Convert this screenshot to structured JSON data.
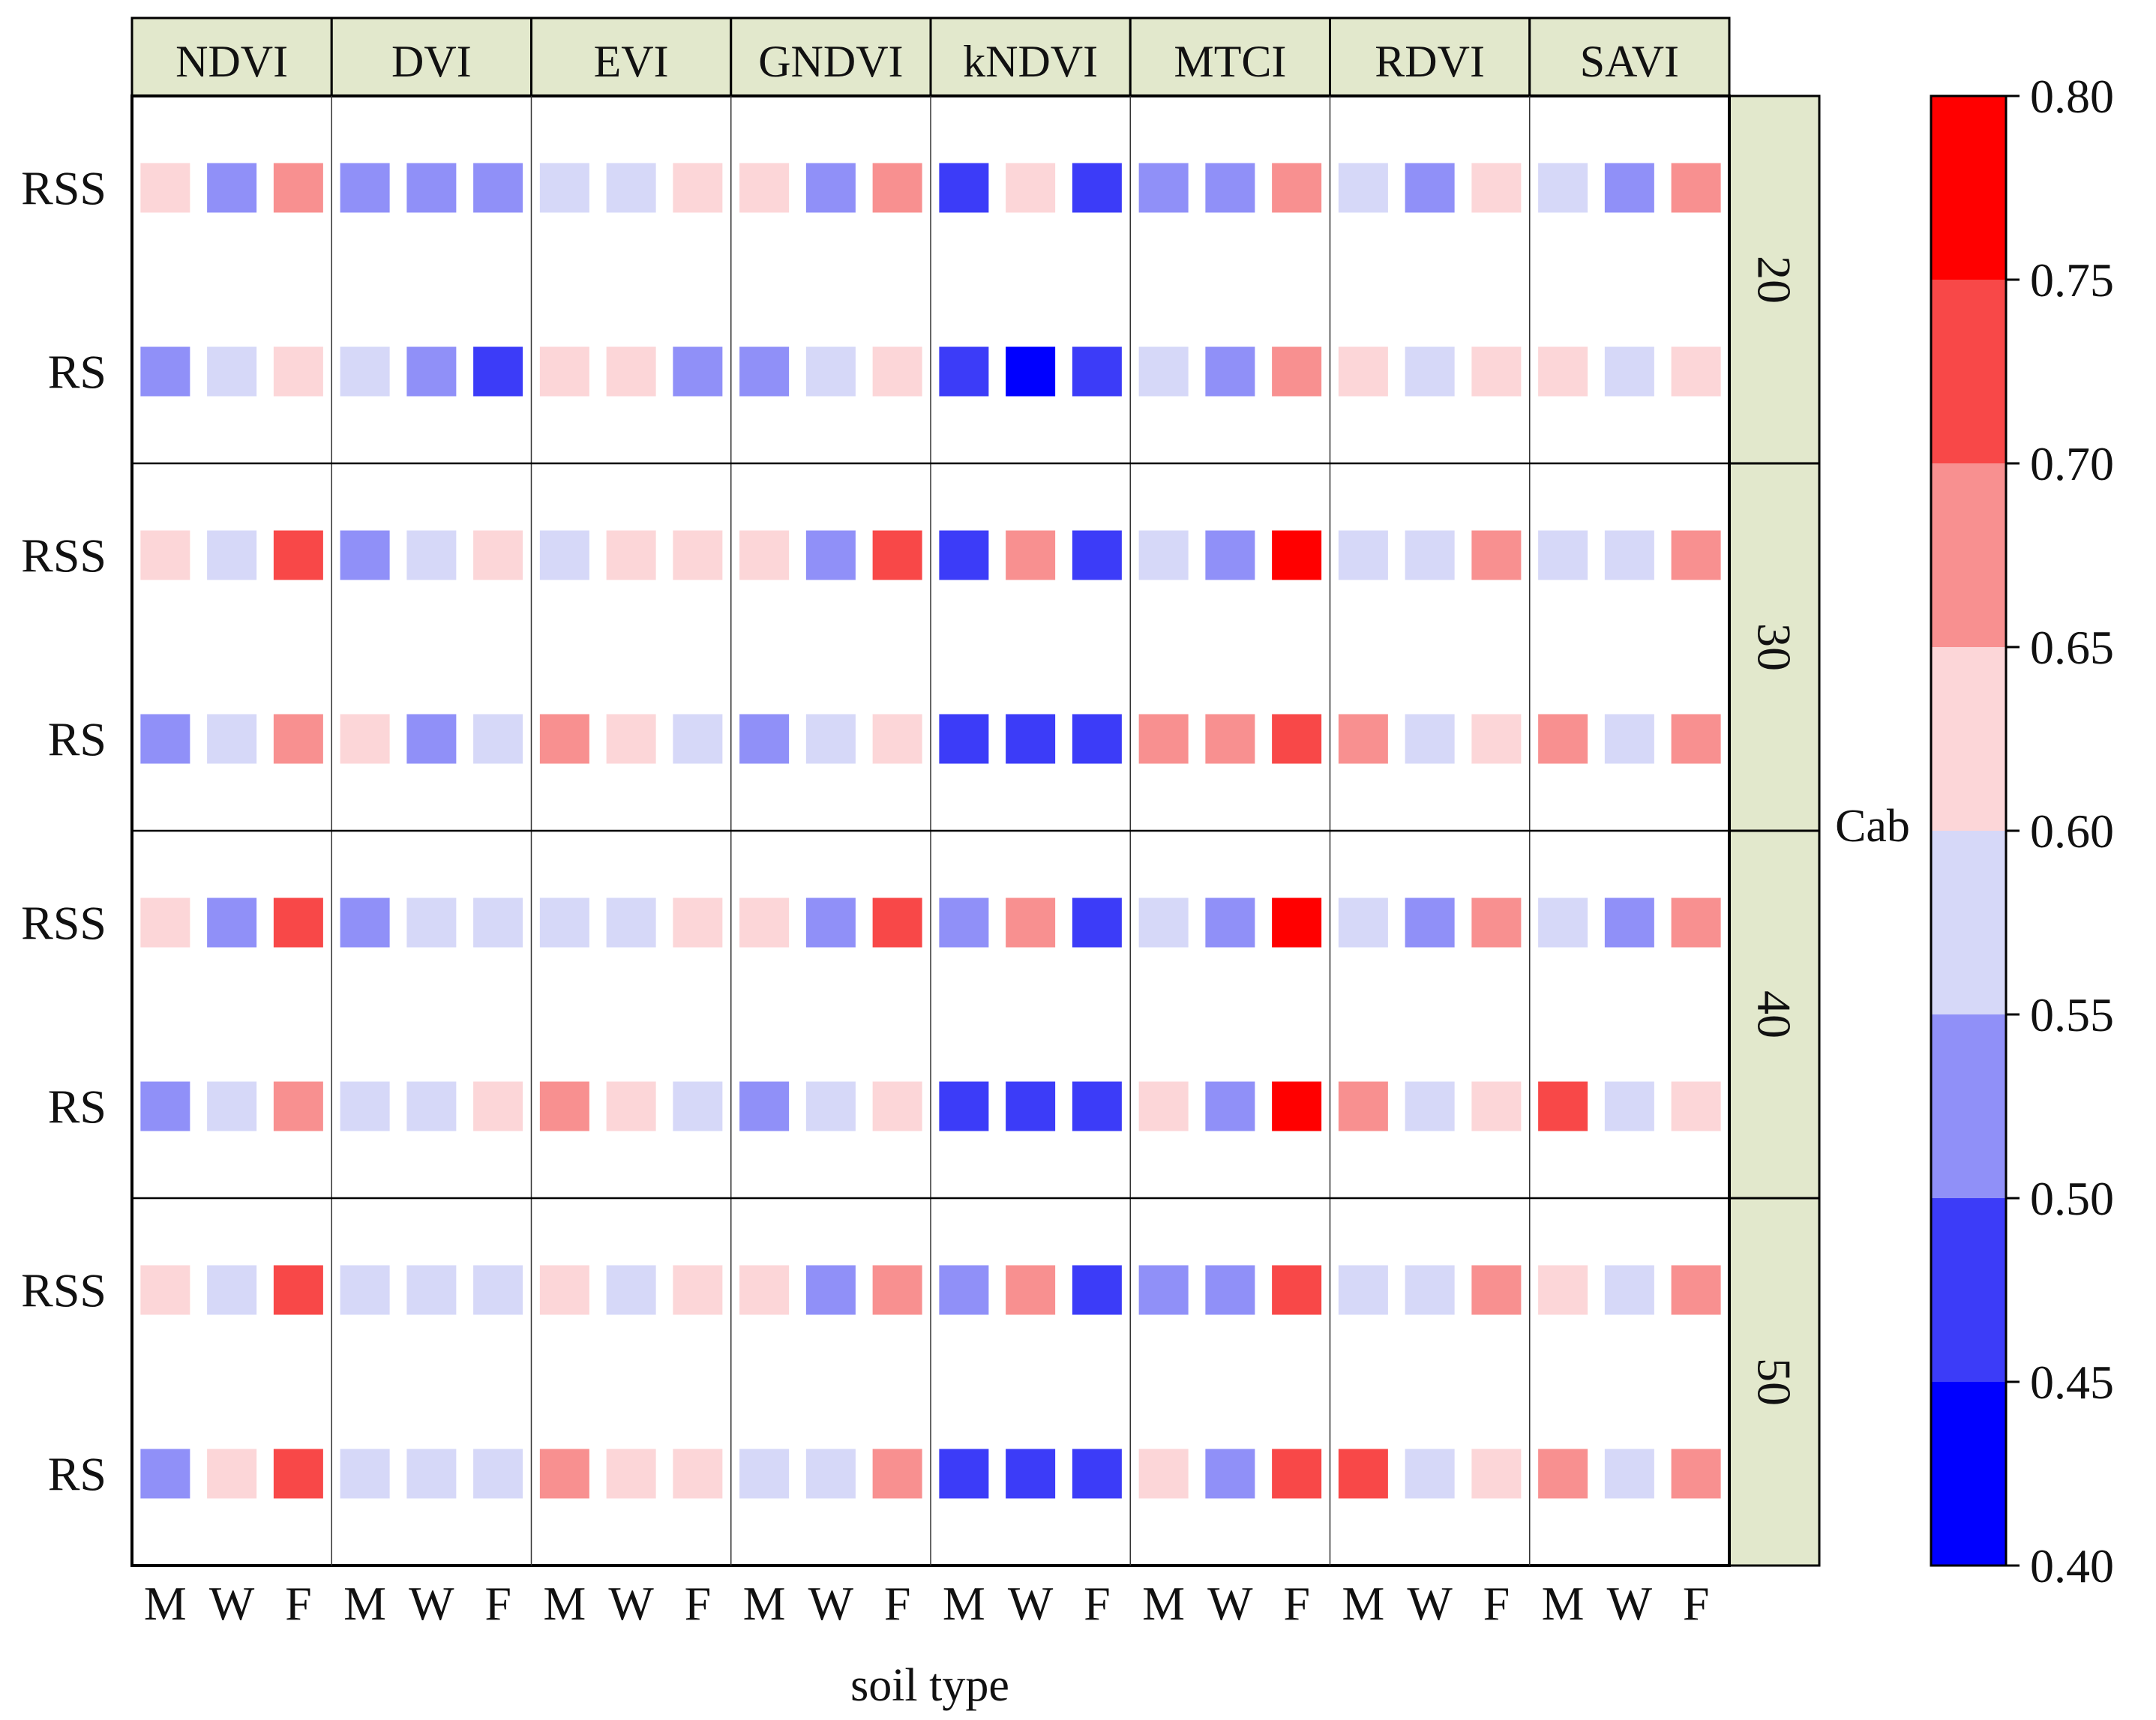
{
  "chart_data": {
    "type": "heatmap",
    "x_label": "soil type",
    "strip_label": "Cab",
    "indices": [
      "NDVI",
      "DVI",
      "EVI",
      "GNDVI",
      "kNDVI",
      "MTCI",
      "RDVI",
      "SAVI"
    ],
    "soil_types": [
      "M",
      "W",
      "F"
    ],
    "cab_levels": [
      "20",
      "30",
      "40",
      "50"
    ],
    "row_labels": [
      "RSS",
      "RS"
    ],
    "color_scale": {
      "min": 0.4,
      "max": 0.8,
      "ticks": [
        "0.80",
        "0.75",
        "0.70",
        "0.65",
        "0.60",
        "0.55",
        "0.50",
        "0.45",
        "0.40"
      ],
      "bins": [
        {
          "from": 0.4,
          "to": 0.45,
          "color": "#0000ff"
        },
        {
          "from": 0.45,
          "to": 0.5,
          "color": "#3c3cf8"
        },
        {
          "from": 0.5,
          "to": 0.55,
          "color": "#9090f8"
        },
        {
          "from": 0.55,
          "to": 0.6,
          "color": "#d6d8f8"
        },
        {
          "from": 0.6,
          "to": 0.65,
          "color": "#fcd6d8"
        },
        {
          "from": 0.65,
          "to": 0.7,
          "color": "#f89090"
        },
        {
          "from": 0.7,
          "to": 0.75,
          "color": "#f84848"
        },
        {
          "from": 0.75,
          "to": 0.8,
          "color": "#ff0000"
        }
      ]
    },
    "values": {
      "20": {
        "RSS": [
          [
            0.625,
            0.525,
            0.675
          ],
          [
            0.525,
            0.525,
            0.525
          ],
          [
            0.575,
            0.575,
            0.625
          ],
          [
            0.625,
            0.525,
            0.675
          ],
          [
            0.475,
            0.625,
            0.475
          ],
          [
            0.525,
            0.525,
            0.675
          ],
          [
            0.575,
            0.525,
            0.625
          ],
          [
            0.575,
            0.525,
            0.675
          ]
        ],
        "RS": [
          [
            0.525,
            0.575,
            0.625
          ],
          [
            0.575,
            0.525,
            0.475
          ],
          [
            0.625,
            0.625,
            0.525
          ],
          [
            0.525,
            0.575,
            0.625
          ],
          [
            0.475,
            0.425,
            0.475
          ],
          [
            0.575,
            0.525,
            0.675
          ],
          [
            0.625,
            0.575,
            0.625
          ],
          [
            0.625,
            0.575,
            0.625
          ]
        ]
      },
      "30": {
        "RSS": [
          [
            0.625,
            0.575,
            0.725
          ],
          [
            0.525,
            0.575,
            0.625
          ],
          [
            0.575,
            0.625,
            0.625
          ],
          [
            0.625,
            0.525,
            0.725
          ],
          [
            0.475,
            0.675,
            0.475
          ],
          [
            0.575,
            0.525,
            0.775
          ],
          [
            0.575,
            0.575,
            0.675
          ],
          [
            0.575,
            0.575,
            0.675
          ]
        ],
        "RS": [
          [
            0.525,
            0.575,
            0.675
          ],
          [
            0.625,
            0.525,
            0.575
          ],
          [
            0.675,
            0.625,
            0.575
          ],
          [
            0.525,
            0.575,
            0.625
          ],
          [
            0.475,
            0.475,
            0.475
          ],
          [
            0.675,
            0.675,
            0.725
          ],
          [
            0.675,
            0.575,
            0.625
          ],
          [
            0.675,
            0.575,
            0.675
          ]
        ]
      },
      "40": {
        "RSS": [
          [
            0.625,
            0.525,
            0.725
          ],
          [
            0.525,
            0.575,
            0.575
          ],
          [
            0.575,
            0.575,
            0.625
          ],
          [
            0.625,
            0.525,
            0.725
          ],
          [
            0.525,
            0.675,
            0.475
          ],
          [
            0.575,
            0.525,
            0.775
          ],
          [
            0.575,
            0.525,
            0.675
          ],
          [
            0.575,
            0.525,
            0.675
          ]
        ],
        "RS": [
          [
            0.525,
            0.575,
            0.675
          ],
          [
            0.575,
            0.575,
            0.625
          ],
          [
            0.675,
            0.625,
            0.575
          ],
          [
            0.525,
            0.575,
            0.625
          ],
          [
            0.475,
            0.475,
            0.475
          ],
          [
            0.625,
            0.525,
            0.775
          ],
          [
            0.675,
            0.575,
            0.625
          ],
          [
            0.725,
            0.575,
            0.625
          ]
        ]
      },
      "50": {
        "RSS": [
          [
            0.625,
            0.575,
            0.725
          ],
          [
            0.575,
            0.575,
            0.575
          ],
          [
            0.625,
            0.575,
            0.625
          ],
          [
            0.625,
            0.525,
            0.675
          ],
          [
            0.525,
            0.675,
            0.475
          ],
          [
            0.525,
            0.525,
            0.725
          ],
          [
            0.575,
            0.575,
            0.675
          ],
          [
            0.625,
            0.575,
            0.675
          ]
        ],
        "RS": [
          [
            0.525,
            0.625,
            0.725
          ],
          [
            0.575,
            0.575,
            0.575
          ],
          [
            0.675,
            0.625,
            0.625
          ],
          [
            0.575,
            0.575,
            0.675
          ],
          [
            0.475,
            0.475,
            0.475
          ],
          [
            0.625,
            0.525,
            0.725
          ],
          [
            0.725,
            0.575,
            0.625
          ],
          [
            0.675,
            0.575,
            0.675
          ]
        ]
      }
    }
  }
}
